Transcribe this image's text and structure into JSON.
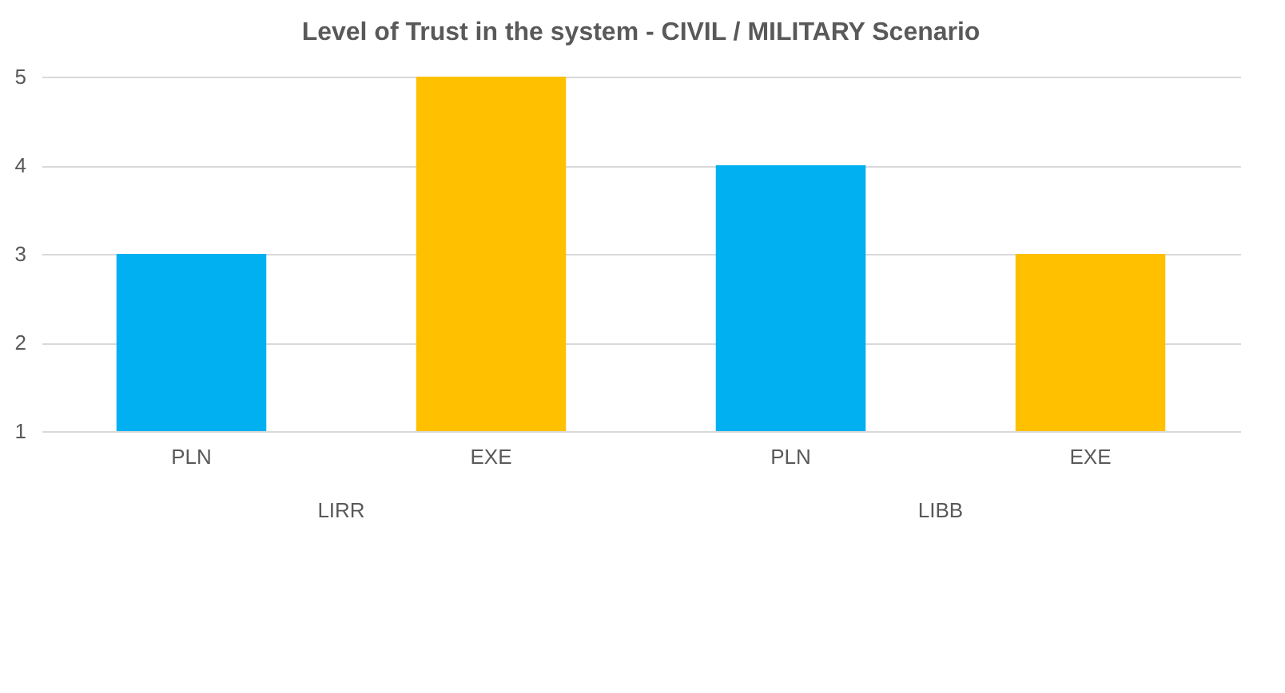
{
  "chart_data": {
    "type": "bar",
    "title": "Level of Trust in the system - CIVIL / MILITARY Scenario",
    "categories": [
      "PLN",
      "EXE",
      "PLN",
      "EXE"
    ],
    "values": [
      3,
      5,
      4,
      3
    ],
    "colors": [
      "#00b0f0",
      "#ffc000",
      "#00b0f0",
      "#ffc000"
    ],
    "ylim": [
      1,
      5
    ],
    "yticks": [
      1,
      2,
      3,
      4,
      5
    ],
    "grid": "y",
    "annotations": [
      "LIRR",
      "LIBB"
    ]
  }
}
